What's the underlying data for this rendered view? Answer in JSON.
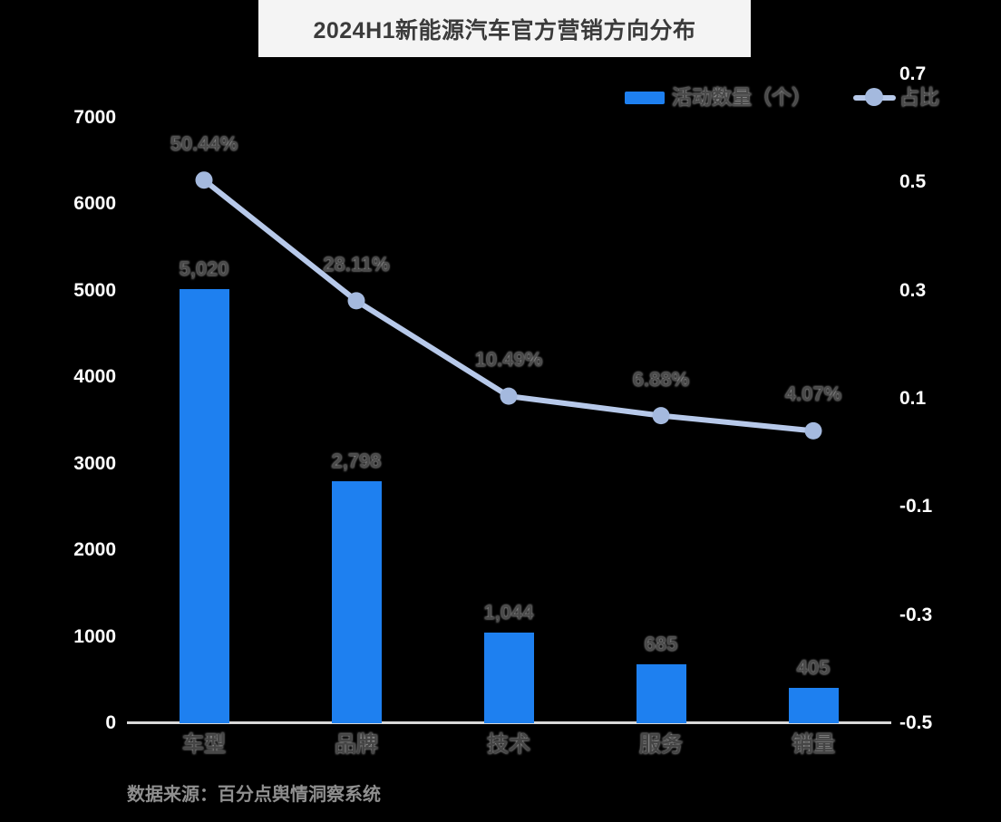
{
  "title": "2024H1新能源汽车官方营销方向分布",
  "source_note": "数据来源：百分点舆情洞察系统",
  "legend": {
    "bars_label": "活动数量（个）",
    "line_label": "占比"
  },
  "colors": {
    "bar": "#1e80f0",
    "line": "#b7c9ea",
    "dot": "#a4b9de",
    "data_label": "#4a4a4a",
    "axis_text": "#ffffff",
    "axis_line": "#d9d9d9",
    "category_text": "#454545",
    "background": "#000000",
    "title_box_bg": "#f4f4f4",
    "title_text": "#3b3b3b",
    "source_text": "#8f8f8f"
  },
  "chart_data": {
    "type": "bar",
    "subtype": "combo-bar-line",
    "title": "2024H1新能源汽车官方营销方向分布",
    "categories": [
      "车型",
      "品牌",
      "技术",
      "服务",
      "销量"
    ],
    "series": [
      {
        "name": "活动数量（个）",
        "type": "bar",
        "axis": "left",
        "values": [
          5020,
          2798,
          1044,
          685,
          405
        ],
        "labels": [
          "5,020",
          "2,798",
          "1,044",
          "685",
          "405"
        ]
      },
      {
        "name": "占比",
        "type": "line",
        "axis": "right",
        "values": [
          0.5044,
          0.2811,
          0.1049,
          0.0688,
          0.0407
        ],
        "labels": [
          "50.44%",
          "28.11%",
          "10.49%",
          "6.88%",
          "4.07%"
        ]
      }
    ],
    "left_axis": {
      "min": 0,
      "max": 7000,
      "ticks": [
        7000,
        6000,
        5000,
        4000,
        3000,
        2000,
        1000,
        0
      ]
    },
    "right_axis": {
      "min": -0.5,
      "max": 0.7,
      "ticks": [
        0.7,
        0.5,
        0.3,
        0.1,
        -0.1,
        -0.3,
        -0.5
      ]
    },
    "grid": false,
    "legend_position": "top-right"
  }
}
